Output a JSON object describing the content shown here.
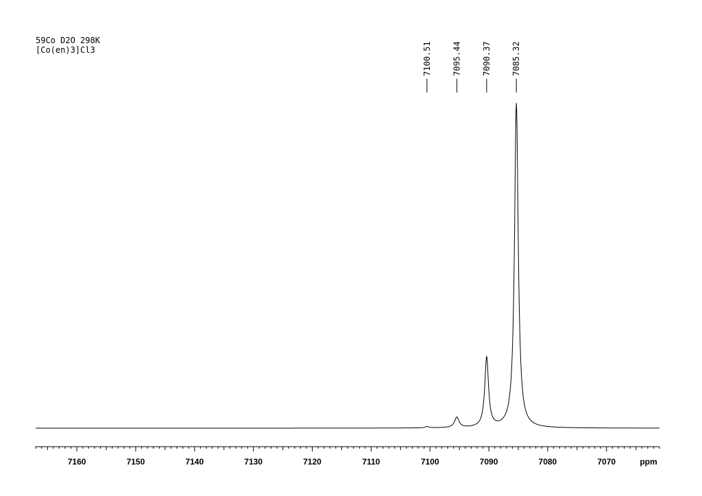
{
  "header": {
    "line1": "59Co D2O 298K",
    "line2": "[Co(en)3]Cl3"
  },
  "chart_data": {
    "type": "line",
    "title": "",
    "xlabel": "ppm",
    "ylabel": "",
    "x_reversed": true,
    "xlim": [
      7167,
      7061
    ],
    "major_ticks": [
      7160,
      7150,
      7140,
      7130,
      7120,
      7110,
      7100,
      7090,
      7080,
      7070
    ],
    "tick_labels": [
      "7160",
      "7150",
      "7140",
      "7130",
      "7120",
      "7110",
      "7100",
      "7090",
      "7080",
      "7070"
    ],
    "minor_tick_step": 1,
    "peak_labels": [
      "7100.51",
      "7095.44",
      "7090.37",
      "7085.32"
    ],
    "series": [
      {
        "peaks": [
          {
            "ppm": 7100.51,
            "intensity": 0.004,
            "width": 0.4
          },
          {
            "ppm": 7095.44,
            "intensity": 0.032,
            "width": 0.45
          },
          {
            "ppm": 7090.37,
            "intensity": 0.215,
            "width": 0.38
          },
          {
            "ppm": 7085.32,
            "intensity": 1.0,
            "width": 0.38
          }
        ]
      }
    ]
  }
}
